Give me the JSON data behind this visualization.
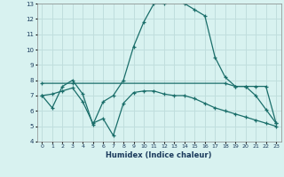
{
  "xlabel": "Humidex (Indice chaleur)",
  "xlim": [
    -0.5,
    23.5
  ],
  "ylim": [
    4,
    13
  ],
  "yticks": [
    4,
    5,
    6,
    7,
    8,
    9,
    10,
    11,
    12,
    13
  ],
  "xticks": [
    0,
    1,
    2,
    3,
    4,
    5,
    6,
    7,
    8,
    9,
    10,
    11,
    12,
    13,
    14,
    15,
    16,
    17,
    18,
    19,
    20,
    21,
    22,
    23
  ],
  "bg_color": "#d8f2f0",
  "grid_color": "#c0dedd",
  "line_color": "#1a6e6a",
  "line1_x": [
    0,
    1,
    2,
    3,
    4,
    5,
    6,
    7,
    8,
    9,
    10,
    11,
    12,
    13,
    14,
    15,
    16,
    17,
    18,
    19,
    20,
    21,
    22,
    23
  ],
  "line1_y": [
    7.0,
    6.2,
    7.6,
    8.0,
    7.1,
    5.1,
    6.6,
    7.0,
    8.0,
    10.2,
    11.8,
    13.0,
    13.0,
    13.3,
    13.0,
    12.6,
    12.2,
    9.5,
    8.2,
    7.6,
    7.6,
    7.0,
    6.1,
    5.2
  ],
  "line2_x": [
    0,
    3,
    18,
    19,
    20,
    21,
    22,
    23
  ],
  "line2_y": [
    7.8,
    7.8,
    7.8,
    7.6,
    7.6,
    7.6,
    7.6,
    5.2
  ],
  "line3_x": [
    0,
    1,
    2,
    3,
    4,
    5,
    6,
    7,
    8,
    9,
    10,
    11,
    12,
    13,
    14,
    15,
    16,
    17,
    18,
    19,
    20,
    21,
    22,
    23
  ],
  "line3_y": [
    7.0,
    7.1,
    7.3,
    7.5,
    6.6,
    5.2,
    5.5,
    4.4,
    6.5,
    7.2,
    7.3,
    7.3,
    7.1,
    7.0,
    7.0,
    6.8,
    6.5,
    6.2,
    6.0,
    5.8,
    5.6,
    5.4,
    5.2,
    5.0
  ]
}
